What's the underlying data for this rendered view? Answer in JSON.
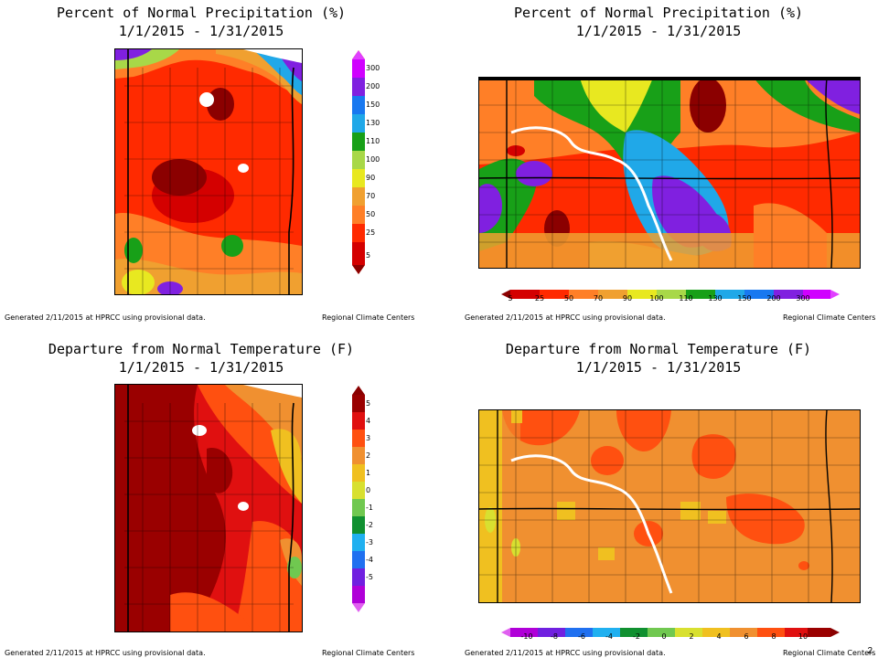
{
  "panels": [
    {
      "id": "precip-mn",
      "title_line1": "Percent of Normal Precipitation (%)",
      "title_line2": "1/1/2015 - 1/31/2015",
      "footer_left": "Generated 2/11/2015 at HPRCC using provisional data.",
      "footer_right": "Regional Climate Centers",
      "legend_orientation": "vertical",
      "legend_labels": [
        "300",
        "200",
        "150",
        "130",
        "110",
        "100",
        "90",
        "70",
        "50",
        "25",
        "5"
      ]
    },
    {
      "id": "precip-dakotas",
      "title_line1": "Percent of Normal Precipitation (%)",
      "title_line2": "1/1/2015 - 1/31/2015",
      "footer_left": "Generated 2/11/2015 at HPRCC using provisional data.",
      "footer_right": "Regional Climate Centers",
      "legend_orientation": "horizontal",
      "legend_labels": [
        "5",
        "25",
        "50",
        "70",
        "90",
        "100",
        "110",
        "130",
        "150",
        "200",
        "300"
      ]
    },
    {
      "id": "temp-mn",
      "title_line1": "Departure from Normal Temperature (F)",
      "title_line2": "1/1/2015 - 1/31/2015",
      "footer_left": "Generated 2/11/2015 at HPRCC using provisional data.",
      "footer_right": "Regional Climate Centers",
      "legend_orientation": "vertical",
      "legend_labels": [
        "5",
        "4",
        "3",
        "2",
        "1",
        "0",
        "-1",
        "-2",
        "-3",
        "-4",
        "-5"
      ]
    },
    {
      "id": "temp-dakotas",
      "title_line1": "Departure from Normal Temperature (F)",
      "title_line2": "1/1/2015 - 1/31/2015",
      "footer_left": "Generated 2/11/2015 at HPRCC using provisional data.",
      "footer_right": "Regional Climate Centers",
      "legend_orientation": "horizontal",
      "legend_labels": [
        "-10",
        "-8",
        "-6",
        "-4",
        "-2",
        "0",
        "2",
        "4",
        "6",
        "8",
        "10"
      ]
    }
  ],
  "colors": {
    "precip_scale": [
      "#8b0000",
      "#d40000",
      "#ff2a00",
      "#ff7f27",
      "#f0a030",
      "#e8e820",
      "#a8d848",
      "#18a018",
      "#20a8e8",
      "#1878f0",
      "#8020e0",
      "#d000ff"
    ],
    "temp_scale": [
      "#b000d8",
      "#7020e0",
      "#2070f0",
      "#20b0f0",
      "#109030",
      "#70c850",
      "#d8e030",
      "#f0c020",
      "#f09030",
      "#ff5010",
      "#e01010",
      "#9a0000"
    ]
  },
  "page_number": "2"
}
